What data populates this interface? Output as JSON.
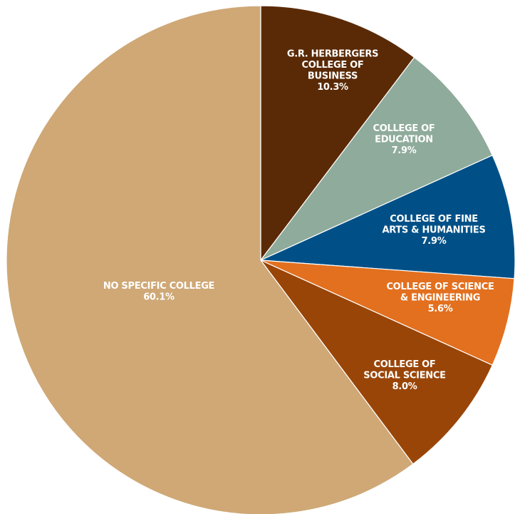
{
  "chart_data": {
    "type": "pie",
    "title": "",
    "start": "top",
    "direction": "clockwise",
    "slices": [
      {
        "name": "G.R. HERBERGERS COLLEGE OF BUSINESS",
        "label_lines": [
          "G.R. HERBERGERS",
          "COLLEGE OF",
          "BUSINESS"
        ],
        "value": 10.3,
        "value_label": "10.3%",
        "color": "#5a2a06"
      },
      {
        "name": "COLLEGE OF EDUCATION",
        "label_lines": [
          "COLLEGE OF",
          "EDUCATION"
        ],
        "value": 7.9,
        "value_label": "7.9%",
        "color": "#8fab9b"
      },
      {
        "name": "COLLEGE OF FINE ARTS & HUMANITIES",
        "label_lines": [
          "COLLEGE OF FINE",
          "ARTS & HUMANITIES"
        ],
        "value": 7.9,
        "value_label": "7.9%",
        "color": "#005087"
      },
      {
        "name": "COLLEGE OF SCIENCE & ENGINEERING",
        "label_lines": [
          "COLLEGE OF SCIENCE",
          "& ENGINEERING"
        ],
        "value": 5.6,
        "value_label": "5.6%",
        "color": "#e2701f"
      },
      {
        "name": "COLLEGE OF SOCIAL SCIENCE",
        "label_lines": [
          "COLLEGE OF",
          "SOCIAL SCIENCE"
        ],
        "value": 8.0,
        "value_label": "8.0%",
        "color": "#994508"
      },
      {
        "name": "NO SPECIFIC COLLEGE",
        "label_lines": [
          "NO SPECIFIC COLLEGE"
        ],
        "value": 60.1,
        "value_label": "60.1%",
        "color": "#cfa876"
      }
    ]
  }
}
